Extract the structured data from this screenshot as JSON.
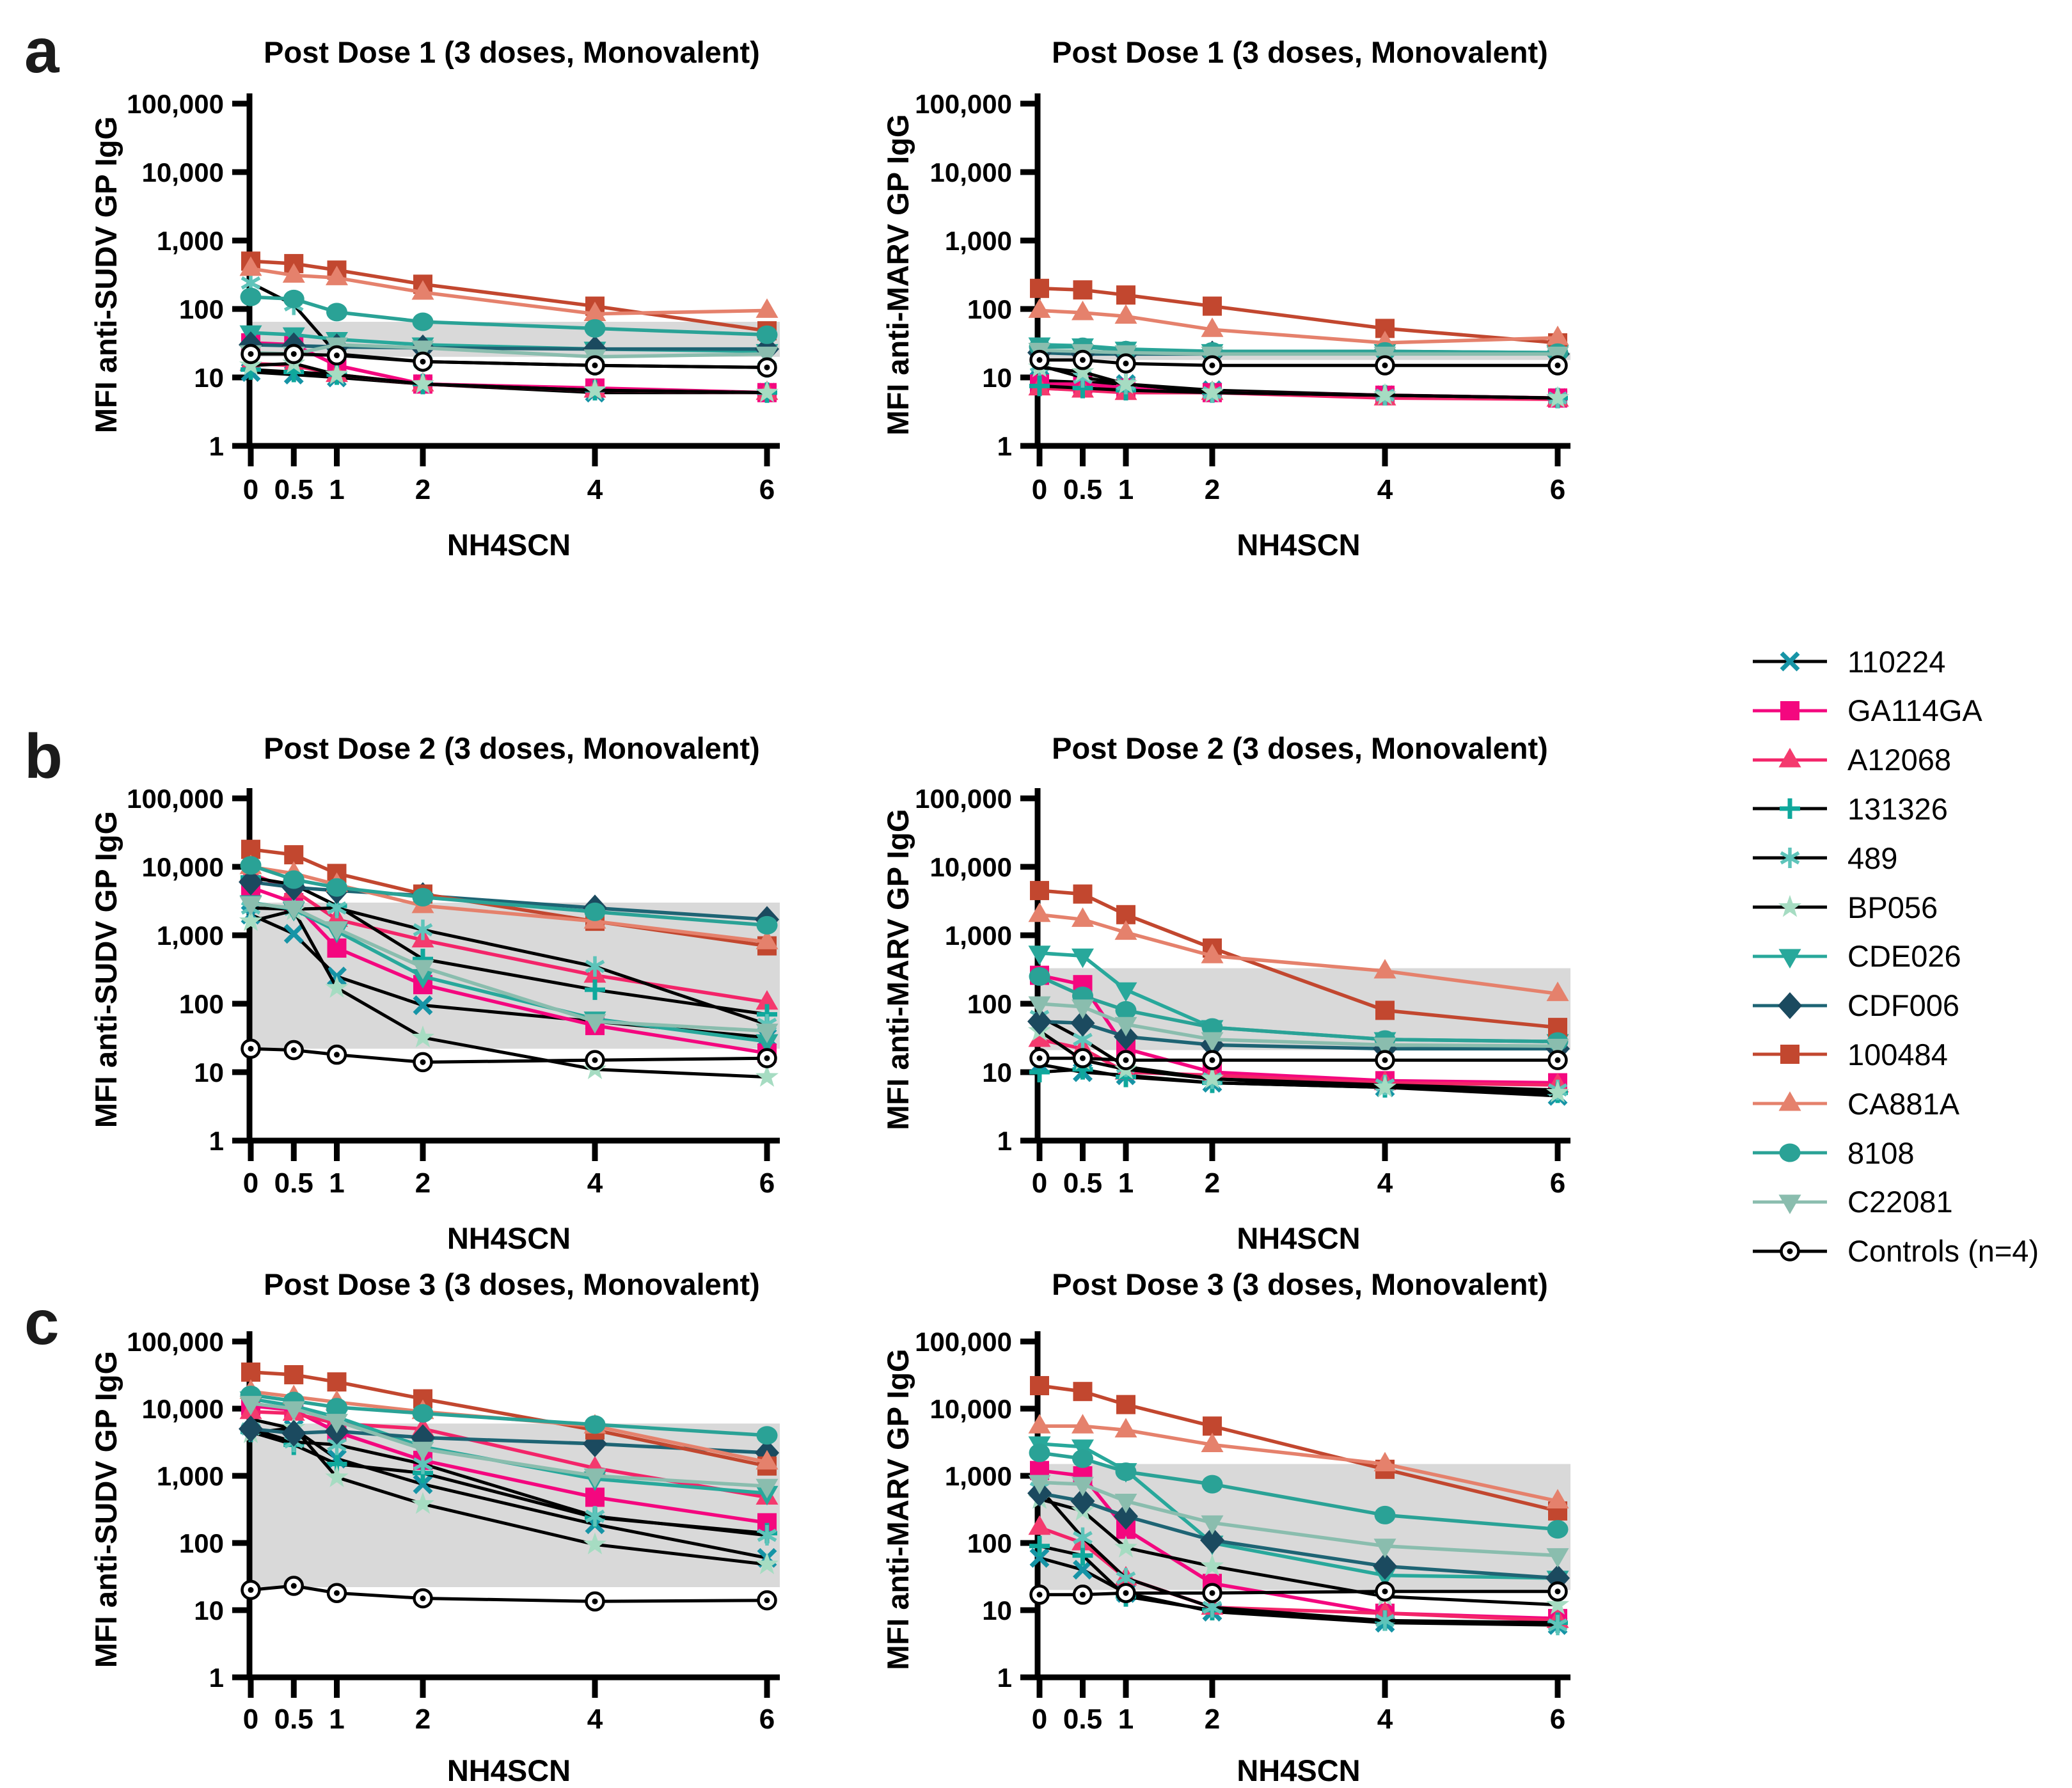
{
  "figure": {
    "panel_letters": [
      "a",
      "b",
      "c"
    ],
    "x_axis_label": "NH4SCN",
    "x_ticks": [
      "0",
      "0.5",
      "1",
      "2",
      "4",
      "6"
    ],
    "y_tick_labels": [
      "1",
      "10",
      "100",
      "1,000",
      "10,000",
      "100,000"
    ],
    "band_color": "#D9D9D9"
  },
  "legend": {
    "items": [
      {
        "label": "110224"
      },
      {
        "label": "GA114GA"
      },
      {
        "label": "A12068"
      },
      {
        "label": "131326"
      },
      {
        "label": "489"
      },
      {
        "label": "BP056"
      },
      {
        "label": "CDE026"
      },
      {
        "label": "CDF006"
      },
      {
        "label": "100484"
      },
      {
        "label": "CA881A"
      },
      {
        "label": "8108"
      },
      {
        "label": "C22081"
      },
      {
        "label": "Controls (n=4)"
      }
    ]
  },
  "series_defs": [
    {
      "id": "110224",
      "marker": "x",
      "marker_color": "#1694A6",
      "line_color": "#000000"
    },
    {
      "id": "GA114GA",
      "marker": "square",
      "marker_color": "#F4077F",
      "line_color": "#F4077F"
    },
    {
      "id": "A12068",
      "marker": "triangle-up",
      "marker_color": "#F43A6E",
      "line_color": "#F32469"
    },
    {
      "id": "131326",
      "marker": "plus",
      "marker_color": "#0FA89C",
      "line_color": "#000000"
    },
    {
      "id": "489",
      "marker": "asterisk",
      "marker_color": "#5EC4BA",
      "line_color": "#000000"
    },
    {
      "id": "BP056",
      "marker": "star",
      "marker_color": "#A6DCC2",
      "line_color": "#000000"
    },
    {
      "id": "CDE026",
      "marker": "triangle-down",
      "marker_color": "#28A89B",
      "line_color": "#28A89B"
    },
    {
      "id": "CDF006",
      "marker": "diamond",
      "marker_color": "#1B4A5F",
      "line_color": "#1E6474"
    },
    {
      "id": "100484",
      "marker": "square",
      "marker_color": "#C2472F",
      "line_color": "#C2472F"
    },
    {
      "id": "CA881A",
      "marker": "triangle-up",
      "marker_color": "#E5816C",
      "line_color": "#E5816C"
    },
    {
      "id": "8108",
      "marker": "circle",
      "marker_color": "#2AA296",
      "line_color": "#2AA296"
    },
    {
      "id": "C22081",
      "marker": "triangle-down",
      "marker_color": "#8ABDAE",
      "line_color": "#8ABDAE"
    },
    {
      "id": "Controls",
      "marker": "circle-dot",
      "marker_color": "#000000",
      "line_color": "#000000"
    }
  ],
  "chart_data": [
    {
      "id": "pd1-sudv",
      "row": "a",
      "col": "left",
      "type": "line",
      "title": "Post Dose 1 (3 doses, Monovalent)",
      "ylabel": "MFI anti-SUDV GP IgG",
      "xlabel": "NH4SCN",
      "x": [
        0,
        0.5,
        1,
        2,
        4,
        6
      ],
      "ylim": [
        1,
        100000
      ],
      "band": [
        20,
        65
      ],
      "series": [
        {
          "name": "110224",
          "values": [
            12,
            11,
            10,
            8,
            6,
            6
          ]
        },
        {
          "name": "GA114GA",
          "values": [
            32,
            30,
            15,
            8,
            7,
            6
          ]
        },
        {
          "name": "A12068",
          "values": [
            16,
            15,
            11,
            8,
            6.5,
            6
          ]
        },
        {
          "name": "131326",
          "values": [
            13,
            12,
            11,
            8,
            6.5,
            6
          ]
        },
        {
          "name": "489",
          "values": [
            240,
            115,
            22,
            17,
            15,
            14
          ]
        },
        {
          "name": "BP056",
          "values": [
            15,
            16,
            11,
            8,
            6.5,
            6
          ]
        },
        {
          "name": "CDE026",
          "values": [
            45,
            42,
            36,
            30,
            26,
            24
          ]
        },
        {
          "name": "CDF006",
          "values": [
            30,
            29,
            28,
            27,
            26,
            26
          ]
        },
        {
          "name": "100484",
          "values": [
            500,
            460,
            370,
            230,
            110,
            48
          ]
        },
        {
          "name": "CA881A",
          "values": [
            390,
            310,
            285,
            175,
            85,
            95
          ]
        },
        {
          "name": "8108",
          "values": [
            150,
            140,
            90,
            65,
            52,
            42
          ]
        },
        {
          "name": "C22081",
          "values": [
            23,
            22,
            30,
            27,
            20,
            22
          ]
        },
        {
          "name": "Controls",
          "values": [
            22,
            22,
            21,
            17,
            15,
            14
          ]
        }
      ]
    },
    {
      "id": "pd1-marv",
      "row": "a",
      "col": "right",
      "type": "line",
      "title": "Post Dose 1 (3 doses, Monovalent)",
      "ylabel": "MFI anti-MARV GP IgG",
      "xlabel": "NH4SCN",
      "x": [
        0,
        0.5,
        1,
        2,
        4,
        6
      ],
      "ylim": [
        1,
        100000
      ],
      "band": [
        18,
        23
      ],
      "series": [
        {
          "name": "110224",
          "values": [
            9,
            8.5,
            8,
            6.5,
            5.5,
            5
          ]
        },
        {
          "name": "GA114GA",
          "values": [
            8,
            8,
            7,
            6,
            5.5,
            5
          ]
        },
        {
          "name": "A12068",
          "values": [
            7,
            6.5,
            6,
            6,
            5,
            4.8
          ]
        },
        {
          "name": "131326",
          "values": [
            7.5,
            7,
            6.5,
            6,
            5.5,
            5
          ]
        },
        {
          "name": "489",
          "values": [
            15,
            10,
            8,
            6,
            5.5,
            5
          ]
        },
        {
          "name": "BP056",
          "values": [
            14,
            12,
            8,
            6,
            5.5,
            5
          ]
        },
        {
          "name": "CDE026",
          "values": [
            30,
            29,
            26,
            24,
            24,
            23
          ]
        },
        {
          "name": "CDF006",
          "values": [
            23,
            22,
            22,
            22,
            23,
            22
          ]
        },
        {
          "name": "100484",
          "values": [
            200,
            190,
            160,
            110,
            52,
            32
          ]
        },
        {
          "name": "CA881A",
          "values": [
            95,
            88,
            78,
            50,
            32,
            38
          ]
        },
        {
          "name": "8108",
          "values": [
            28,
            28,
            25,
            24,
            24,
            23
          ]
        },
        {
          "name": "C22081",
          "values": [
            25,
            24,
            23,
            22,
            22,
            22
          ]
        },
        {
          "name": "Controls",
          "values": [
            18,
            18,
            16,
            15,
            15,
            15
          ]
        }
      ]
    },
    {
      "id": "pd2-sudv",
      "row": "b",
      "col": "left",
      "type": "line",
      "title": "Post Dose 2 (3 doses, Monovalent)",
      "ylabel": "MFI anti-SUDV GP IgG",
      "xlabel": "NH4SCN",
      "x": [
        0,
        0.5,
        1,
        2,
        4,
        6
      ],
      "ylim": [
        1,
        100000
      ],
      "band": [
        22,
        3000
      ],
      "series": [
        {
          "name": "110224",
          "values": [
            2000,
            1050,
            250,
            95,
            55,
            32
          ]
        },
        {
          "name": "GA114GA",
          "values": [
            5000,
            3000,
            650,
            190,
            48,
            19
          ]
        },
        {
          "name": "A12068",
          "values": [
            8000,
            4500,
            1700,
            850,
            260,
            105
          ]
        },
        {
          "name": "131326",
          "values": [
            7000,
            5500,
            2700,
            450,
            160,
            70
          ]
        },
        {
          "name": "489",
          "values": [
            2500,
            2400,
            2500,
            1200,
            350,
            50
          ]
        },
        {
          "name": "BP056",
          "values": [
            1600,
            2300,
            170,
            32,
            11,
            8.5
          ]
        },
        {
          "name": "CDE026",
          "values": [
            3000,
            2400,
            1150,
            250,
            60,
            28
          ]
        },
        {
          "name": "CDF006",
          "values": [
            6000,
            5000,
            4500,
            3800,
            2500,
            1700
          ]
        },
        {
          "name": "100484",
          "values": [
            18000,
            15000,
            8000,
            4000,
            1600,
            700
          ]
        },
        {
          "name": "CA881A",
          "values": [
            10000,
            8000,
            5500,
            2700,
            1600,
            800
          ]
        },
        {
          "name": "8108",
          "values": [
            10500,
            6500,
            5000,
            3600,
            2200,
            1400
          ]
        },
        {
          "name": "C22081",
          "values": [
            2900,
            2500,
            1250,
            340,
            55,
            40
          ]
        },
        {
          "name": "Controls",
          "values": [
            22,
            21,
            18,
            14,
            15,
            16
          ]
        }
      ]
    },
    {
      "id": "pd2-marv",
      "row": "b",
      "col": "right",
      "type": "line",
      "title": "Post Dose 2 (3 doses, Monovalent)",
      "ylabel": "MFI anti-MARV GP IgG",
      "xlabel": "NH4SCN",
      "x": [
        0,
        0.5,
        1,
        2,
        4,
        6
      ],
      "ylim": [
        1,
        100000
      ],
      "band": [
        21,
        330
      ],
      "series": [
        {
          "name": "110224",
          "values": [
            13,
            10,
            9,
            7,
            6,
            4.5
          ]
        },
        {
          "name": "GA114GA",
          "values": [
            260,
            190,
            22,
            10,
            7.5,
            7
          ]
        },
        {
          "name": "A12068",
          "values": [
            30,
            22,
            10,
            9,
            7,
            6.5
          ]
        },
        {
          "name": "131326",
          "values": [
            10,
            11,
            8.5,
            7,
            6,
            5
          ]
        },
        {
          "name": "489",
          "values": [
            65,
            30,
            12,
            8,
            6.5,
            5.5
          ]
        },
        {
          "name": "BP056",
          "values": [
            40,
            15,
            11,
            8,
            6,
            5
          ]
        },
        {
          "name": "CDE026",
          "values": [
            550,
            500,
            160,
            45,
            30,
            28
          ]
        },
        {
          "name": "CDF006",
          "values": [
            55,
            52,
            33,
            25,
            22,
            22
          ]
        },
        {
          "name": "100484",
          "values": [
            4500,
            4000,
            2000,
            650,
            80,
            45
          ]
        },
        {
          "name": "CA881A",
          "values": [
            2000,
            1700,
            1100,
            500,
            300,
            140
          ]
        },
        {
          "name": "8108",
          "values": [
            250,
            130,
            80,
            45,
            30,
            28
          ]
        },
        {
          "name": "C22081",
          "values": [
            100,
            90,
            50,
            30,
            25,
            24
          ]
        },
        {
          "name": "Controls",
          "values": [
            16,
            16,
            15,
            15,
            15,
            15
          ]
        }
      ]
    },
    {
      "id": "pd3-sudv",
      "row": "c",
      "col": "left",
      "type": "line",
      "title": "Post Dose 3 (3 doses, Monovalent)",
      "ylabel": "MFI anti-SUDV GP IgG",
      "xlabel": "NH4SCN",
      "x": [
        0,
        0.5,
        1,
        2,
        4,
        6
      ],
      "ylim": [
        1,
        100000
      ],
      "band": [
        22,
        6000
      ],
      "series": [
        {
          "name": "110224",
          "values": [
            7000,
            5000,
            1800,
            750,
            190,
            60
          ]
        },
        {
          "name": "GA114GA",
          "values": [
            11000,
            9500,
            4500,
            1700,
            480,
            200
          ]
        },
        {
          "name": "A12068",
          "values": [
            9000,
            8500,
            6000,
            5000,
            1300,
            480
          ]
        },
        {
          "name": "131326",
          "values": [
            4500,
            2900,
            1500,
            1100,
            240,
            140
          ]
        },
        {
          "name": "489",
          "values": [
            5000,
            3200,
            2900,
            1500,
            250,
            130
          ]
        },
        {
          "name": "BP056",
          "values": [
            4300,
            5200,
            950,
            380,
            95,
            48
          ]
        },
        {
          "name": "CDE026",
          "values": [
            14000,
            11000,
            7500,
            2700,
            900,
            550
          ]
        },
        {
          "name": "CDF006",
          "values": [
            5000,
            4300,
            4600,
            3700,
            3000,
            2200
          ]
        },
        {
          "name": "100484",
          "values": [
            35000,
            32000,
            25000,
            14000,
            4800,
            1400
          ]
        },
        {
          "name": "CA881A",
          "values": [
            18000,
            15000,
            12500,
            9000,
            5500,
            1600
          ]
        },
        {
          "name": "8108",
          "values": [
            16000,
            13000,
            10500,
            8500,
            5800,
            4000
          ]
        },
        {
          "name": "C22081",
          "values": [
            12000,
            10000,
            6500,
            2500,
            1000,
            700
          ]
        },
        {
          "name": "Controls",
          "values": [
            20,
            23,
            18,
            15,
            13.5,
            14
          ]
        }
      ]
    },
    {
      "id": "pd3-marv",
      "row": "c",
      "col": "right",
      "type": "line",
      "title": "Post Dose 3 (3 doses, Monovalent)",
      "ylabel": "MFI anti-MARV GP IgG",
      "xlabel": "NH4SCN",
      "x": [
        0,
        0.5,
        1,
        2,
        4,
        6
      ],
      "ylim": [
        1,
        100000
      ],
      "band": [
        20,
        1500
      ],
      "series": [
        {
          "name": "110224",
          "values": [
            60,
            40,
            18,
            9.5,
            6.5,
            6
          ]
        },
        {
          "name": "GA114GA",
          "values": [
            1200,
            1000,
            160,
            25,
            9,
            7.5
          ]
        },
        {
          "name": "A12068",
          "values": [
            170,
            100,
            30,
            11,
            9,
            7
          ]
        },
        {
          "name": "131326",
          "values": [
            90,
            65,
            16,
            10,
            7,
            6.5
          ]
        },
        {
          "name": "489",
          "values": [
            650,
            120,
            30,
            11,
            7,
            6
          ]
        },
        {
          "name": "BP056",
          "values": [
            450,
            300,
            85,
            45,
            16,
            12
          ]
        },
        {
          "name": "CDE026",
          "values": [
            3000,
            2700,
            1200,
            100,
            33,
            30
          ]
        },
        {
          "name": "CDF006",
          "values": [
            550,
            420,
            250,
            110,
            45,
            30
          ]
        },
        {
          "name": "100484",
          "values": [
            22000,
            18000,
            11500,
            5500,
            1250,
            300
          ]
        },
        {
          "name": "CA881A",
          "values": [
            5500,
            5500,
            4800,
            2900,
            1500,
            420
          ]
        },
        {
          "name": "8108",
          "values": [
            2200,
            1800,
            1150,
            750,
            260,
            160
          ]
        },
        {
          "name": "C22081",
          "values": [
            800,
            750,
            420,
            200,
            90,
            65
          ]
        },
        {
          "name": "Controls",
          "values": [
            17,
            17,
            18,
            18,
            19,
            19
          ]
        }
      ]
    }
  ]
}
